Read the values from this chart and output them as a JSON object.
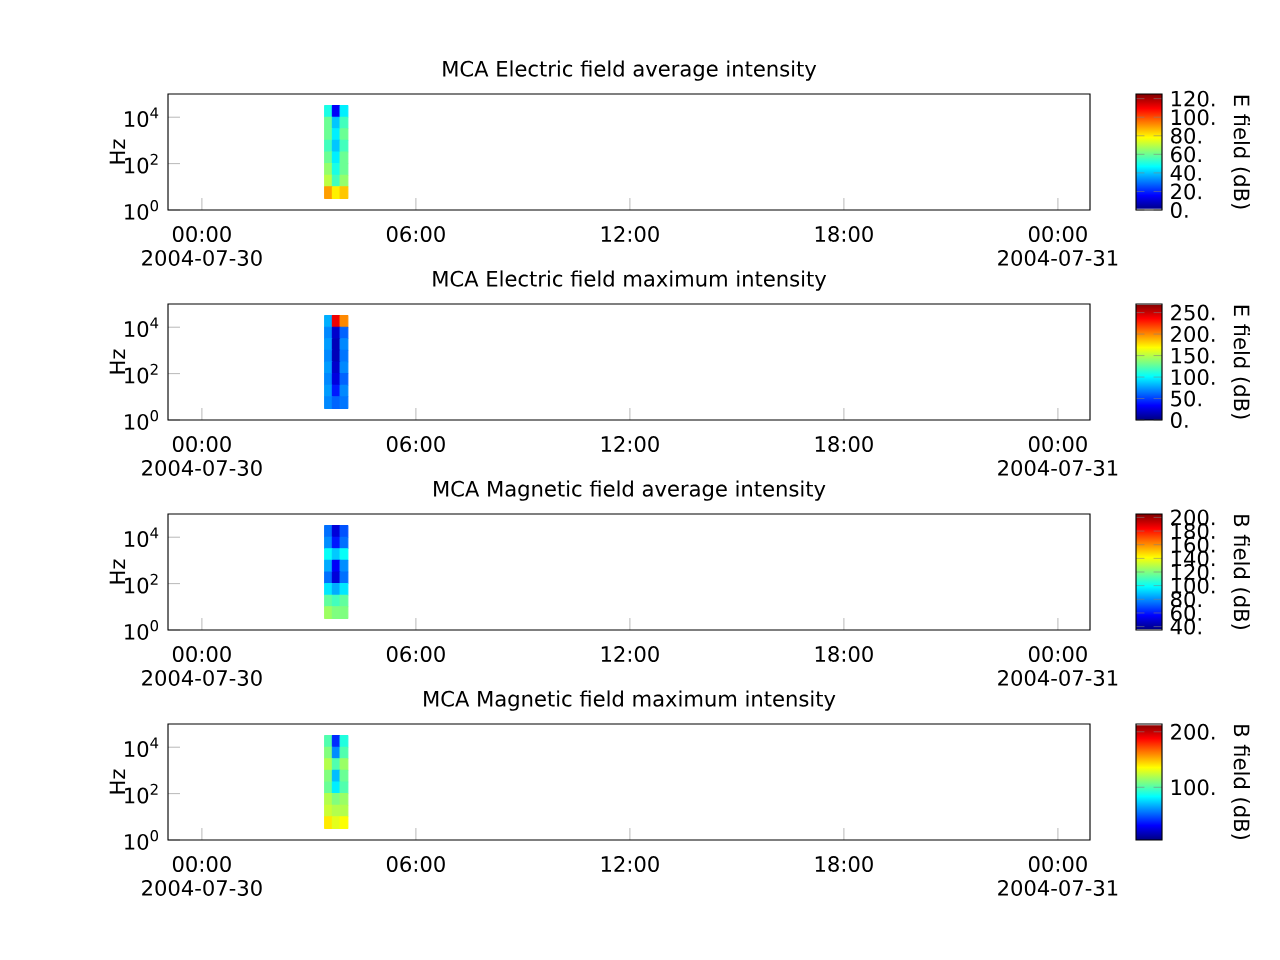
{
  "chart_data": [
    {
      "type": "heatmap",
      "title": "MCA  Electric field average intensity",
      "ylabel": "Hz",
      "clabel": "E field (dB)",
      "log": "y",
      "x": [
        "2004-07-30T03:33",
        "2004-07-30T03:46",
        "2004-07-30T03:59"
      ],
      "y": [
        17800,
        5620,
        1780,
        562,
        178,
        56.2,
        17.8,
        5.62
      ],
      "cells": [
        [
          50,
          15,
          45
        ],
        [
          60,
          40,
          55
        ],
        [
          60,
          45,
          60
        ],
        [
          55,
          40,
          55
        ],
        [
          60,
          45,
          60
        ],
        [
          65,
          50,
          60
        ],
        [
          70,
          55,
          65
        ],
        [
          90,
          80,
          85
        ]
      ],
      "xlim": [
        "2004-07-29T23:03",
        "2004-07-31T00:54"
      ],
      "xticks": [
        {
          "value": "2004-07-30T00:00",
          "label": "00:00 2004-07-30"
        },
        {
          "value": "2004-07-30T06:00",
          "label": "06:00"
        },
        {
          "value": "2004-07-30T12:00",
          "label": "12:00"
        },
        {
          "value": "2004-07-30T18:00",
          "label": "18:00"
        },
        {
          "value": "2004-07-31T00:00",
          "label": "00:00 2004-07-31"
        }
      ],
      "ylim": [
        1,
        100000
      ],
      "yticks": [
        {
          "value": 1,
          "label": "10$^{0}$"
        },
        {
          "value": 100,
          "label": "10$^{2}$"
        },
        {
          "value": 10000,
          "label": "10$^{4}$"
        }
      ],
      "clim": [
        0,
        125
      ],
      "cticks": [
        {
          "value": 0,
          "label": "0."
        },
        {
          "value": 20,
          "label": "20."
        },
        {
          "value": 40,
          "label": "40."
        },
        {
          "value": 60,
          "label": "60."
        },
        {
          "value": 80,
          "label": "80."
        },
        {
          "value": 100,
          "label": "100."
        },
        {
          "value": 120,
          "label": "120."
        }
      ]
    },
    {
      "type": "heatmap",
      "title": "MCA  Electric field maximum intensity",
      "ylabel": "Hz",
      "clabel": "E field (dB)",
      "log": "y",
      "x": [
        "2004-07-30T03:33",
        "2004-07-30T03:46",
        "2004-07-30T03:59"
      ],
      "y": [
        17800,
        5620,
        1780,
        562,
        178,
        56.2,
        17.8,
        5.62
      ],
      "cells": [
        [
          80,
          240,
          200
        ],
        [
          70,
          20,
          60
        ],
        [
          75,
          15,
          70
        ],
        [
          70,
          15,
          65
        ],
        [
          75,
          20,
          70
        ],
        [
          70,
          25,
          60
        ],
        [
          75,
          40,
          70
        ],
        [
          70,
          60,
          65
        ]
      ],
      "xlim": [
        "2004-07-29T23:03",
        "2004-07-31T00:54"
      ],
      "xticks": [
        {
          "value": "2004-07-30T00:00",
          "label": "00:00 2004-07-30"
        },
        {
          "value": "2004-07-30T06:00",
          "label": "06:00"
        },
        {
          "value": "2004-07-30T12:00",
          "label": "12:00"
        },
        {
          "value": "2004-07-30T18:00",
          "label": "18:00"
        },
        {
          "value": "2004-07-31T00:00",
          "label": "00:00 2004-07-31"
        }
      ],
      "ylim": [
        1,
        100000
      ],
      "yticks": [
        {
          "value": 1,
          "label": "10$^{0}$"
        },
        {
          "value": 100,
          "label": "10$^{2}$"
        },
        {
          "value": 10000,
          "label": "10$^{4}$"
        }
      ],
      "clim": [
        0,
        270
      ],
      "cticks": [
        {
          "value": 0,
          "label": "0."
        },
        {
          "value": 50,
          "label": "50."
        },
        {
          "value": 100,
          "label": "100."
        },
        {
          "value": 150,
          "label": "150."
        },
        {
          "value": 200,
          "label": "200."
        },
        {
          "value": 250,
          "label": "250."
        }
      ]
    },
    {
      "type": "heatmap",
      "title": "MCA  Magnetic field average intensity",
      "ylabel": "Hz",
      "clabel": "B field (dB)",
      "log": "y",
      "x": [
        "2004-07-30T03:33",
        "2004-07-30T03:46",
        "2004-07-30T03:59"
      ],
      "y": [
        17800,
        5620,
        1780,
        562,
        178,
        56.2,
        17.8,
        5.62
      ],
      "cells": [
        [
          75,
          50,
          70
        ],
        [
          80,
          60,
          75
        ],
        [
          100,
          90,
          100
        ],
        [
          85,
          55,
          80
        ],
        [
          75,
          50,
          75
        ],
        [
          95,
          85,
          95
        ],
        [
          115,
          110,
          115
        ],
        [
          125,
          120,
          120
        ]
      ],
      "xlim": [
        "2004-07-29T23:03",
        "2004-07-31T00:54"
      ],
      "xticks": [
        {
          "value": "2004-07-30T00:00",
          "label": "00:00 2004-07-30"
        },
        {
          "value": "2004-07-30T06:00",
          "label": "06:00"
        },
        {
          "value": "2004-07-30T12:00",
          "label": "12:00"
        },
        {
          "value": "2004-07-30T18:00",
          "label": "18:00"
        },
        {
          "value": "2004-07-31T00:00",
          "label": "00:00 2004-07-31"
        }
      ],
      "ylim": [
        1,
        100000
      ],
      "yticks": [
        {
          "value": 1,
          "label": "10$^{0}$"
        },
        {
          "value": 100,
          "label": "10$^{2}$"
        },
        {
          "value": 10000,
          "label": "10$^{4}$"
        }
      ],
      "clim": [
        35,
        205
      ],
      "cticks": [
        {
          "value": 40,
          "label": "40."
        },
        {
          "value": 60,
          "label": "60."
        },
        {
          "value": 80,
          "label": "80."
        },
        {
          "value": 100,
          "label": "100."
        },
        {
          "value": 120,
          "label": "120."
        },
        {
          "value": 140,
          "label": "140."
        },
        {
          "value": 160,
          "label": "160."
        },
        {
          "value": 180,
          "label": "180."
        },
        {
          "value": 200,
          "label": "200."
        }
      ]
    },
    {
      "type": "heatmap",
      "title": "MCA  Magnetic field maximum intensity",
      "ylabel": "Hz",
      "clabel": "B field (dB)",
      "log": "y",
      "x": [
        "2004-07-30T03:33",
        "2004-07-30T03:46",
        "2004-07-30T03:59"
      ],
      "y": [
        17800,
        5620,
        1780,
        562,
        178,
        56.2,
        17.8,
        5.62
      ],
      "cells": [
        [
          100,
          40,
          90
        ],
        [
          110,
          60,
          100
        ],
        [
          120,
          100,
          115
        ],
        [
          110,
          70,
          105
        ],
        [
          105,
          80,
          100
        ],
        [
          120,
          110,
          115
        ],
        [
          125,
          120,
          120
        ],
        [
          140,
          130,
          135
        ]
      ],
      "xlim": [
        "2004-07-29T23:03",
        "2004-07-31T00:54"
      ],
      "xticks": [
        {
          "value": "2004-07-30T00:00",
          "label": "00:00 2004-07-30"
        },
        {
          "value": "2004-07-30T06:00",
          "label": "06:00"
        },
        {
          "value": "2004-07-30T12:00",
          "label": "12:00"
        },
        {
          "value": "2004-07-30T18:00",
          "label": "18:00"
        },
        {
          "value": "2004-07-31T00:00",
          "label": "00:00 2004-07-31"
        }
      ],
      "ylim": [
        1,
        100000
      ],
      "yticks": [
        {
          "value": 1,
          "label": "10$^{0}$"
        },
        {
          "value": 100,
          "label": "10$^{2}$"
        },
        {
          "value": 10000,
          "label": "10$^{4}$"
        }
      ],
      "clim": [
        5,
        214
      ],
      "cticks": [
        {
          "value": 100,
          "label": "100."
        },
        {
          "value": 200,
          "label": "200."
        }
      ]
    }
  ]
}
